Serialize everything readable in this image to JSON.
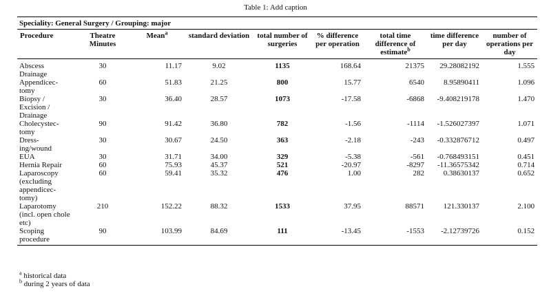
{
  "caption": "Table 1: Add caption",
  "table": {
    "group": "Speciality: General Surgery / Grouping: major",
    "columns": [
      {
        "label": "Procedure"
      },
      {
        "label": "Theatre Minutes"
      },
      {
        "label": "Mean",
        "sup": "a"
      },
      {
        "label": "standard deviation"
      },
      {
        "label": "total number of surgeries"
      },
      {
        "label": "% difference per operation"
      },
      {
        "label": "total time difference of estimate",
        "sup": "b"
      },
      {
        "label": "time difference per day"
      },
      {
        "label": "number of operations per day"
      }
    ],
    "rows": [
      [
        "Abscess Drainage",
        "30",
        "11.17",
        "9.02",
        "1135",
        "168.64",
        "21375",
        "29.28082192",
        "1.555"
      ],
      [
        "Appendicec-\ntomy",
        "60",
        "51.83",
        "21.25",
        "800",
        "15.77",
        "6540",
        "8.95890411",
        "1.096"
      ],
      [
        "Biopsy / Excision / Drainage",
        "30",
        "36.40",
        "28.57",
        "1073",
        "-17.58",
        "-6868",
        "-9.408219178",
        "1.470"
      ],
      [
        "Cholecystec-\ntomy",
        "90",
        "91.42",
        "36.80",
        "782",
        "-1.56",
        "-1114",
        "-1.526027397",
        "1.071"
      ],
      [
        "Dress-\ning/wound",
        "30",
        "30.67",
        "24.50",
        "363",
        "-2.18",
        "-243",
        "-0.332876712",
        "0.497"
      ],
      [
        "EUA",
        "30",
        "31.71",
        "34.00",
        "329",
        "-5.38",
        "-561",
        "-0.768493151",
        "0.451"
      ],
      [
        "Hernia Repair",
        "60",
        "75.93",
        "45.37",
        "521",
        "-20.97",
        "-8297",
        "-11.36575342",
        "0.714"
      ],
      [
        "Laparoscopy (excluding appendicec-\ntomy)",
        "60",
        "59.41",
        "35.32",
        "476",
        "1.00",
        "282",
        "0.38630137",
        "0.652"
      ],
      [
        "Laparotomy (incl. open chole etc)",
        "210",
        "152.22",
        "88.32",
        "1533",
        "37.95",
        "88571",
        "121.330137",
        "2.100"
      ],
      [
        "Scoping procedure",
        "90",
        "103.99",
        "84.69",
        "111",
        "-13.45",
        "-1553",
        "-2.12739726",
        "0.152"
      ]
    ]
  },
  "notes": [
    {
      "mark": "a",
      "text": "historical data"
    },
    {
      "mark": "b",
      "text": "during 2 years of data"
    }
  ]
}
